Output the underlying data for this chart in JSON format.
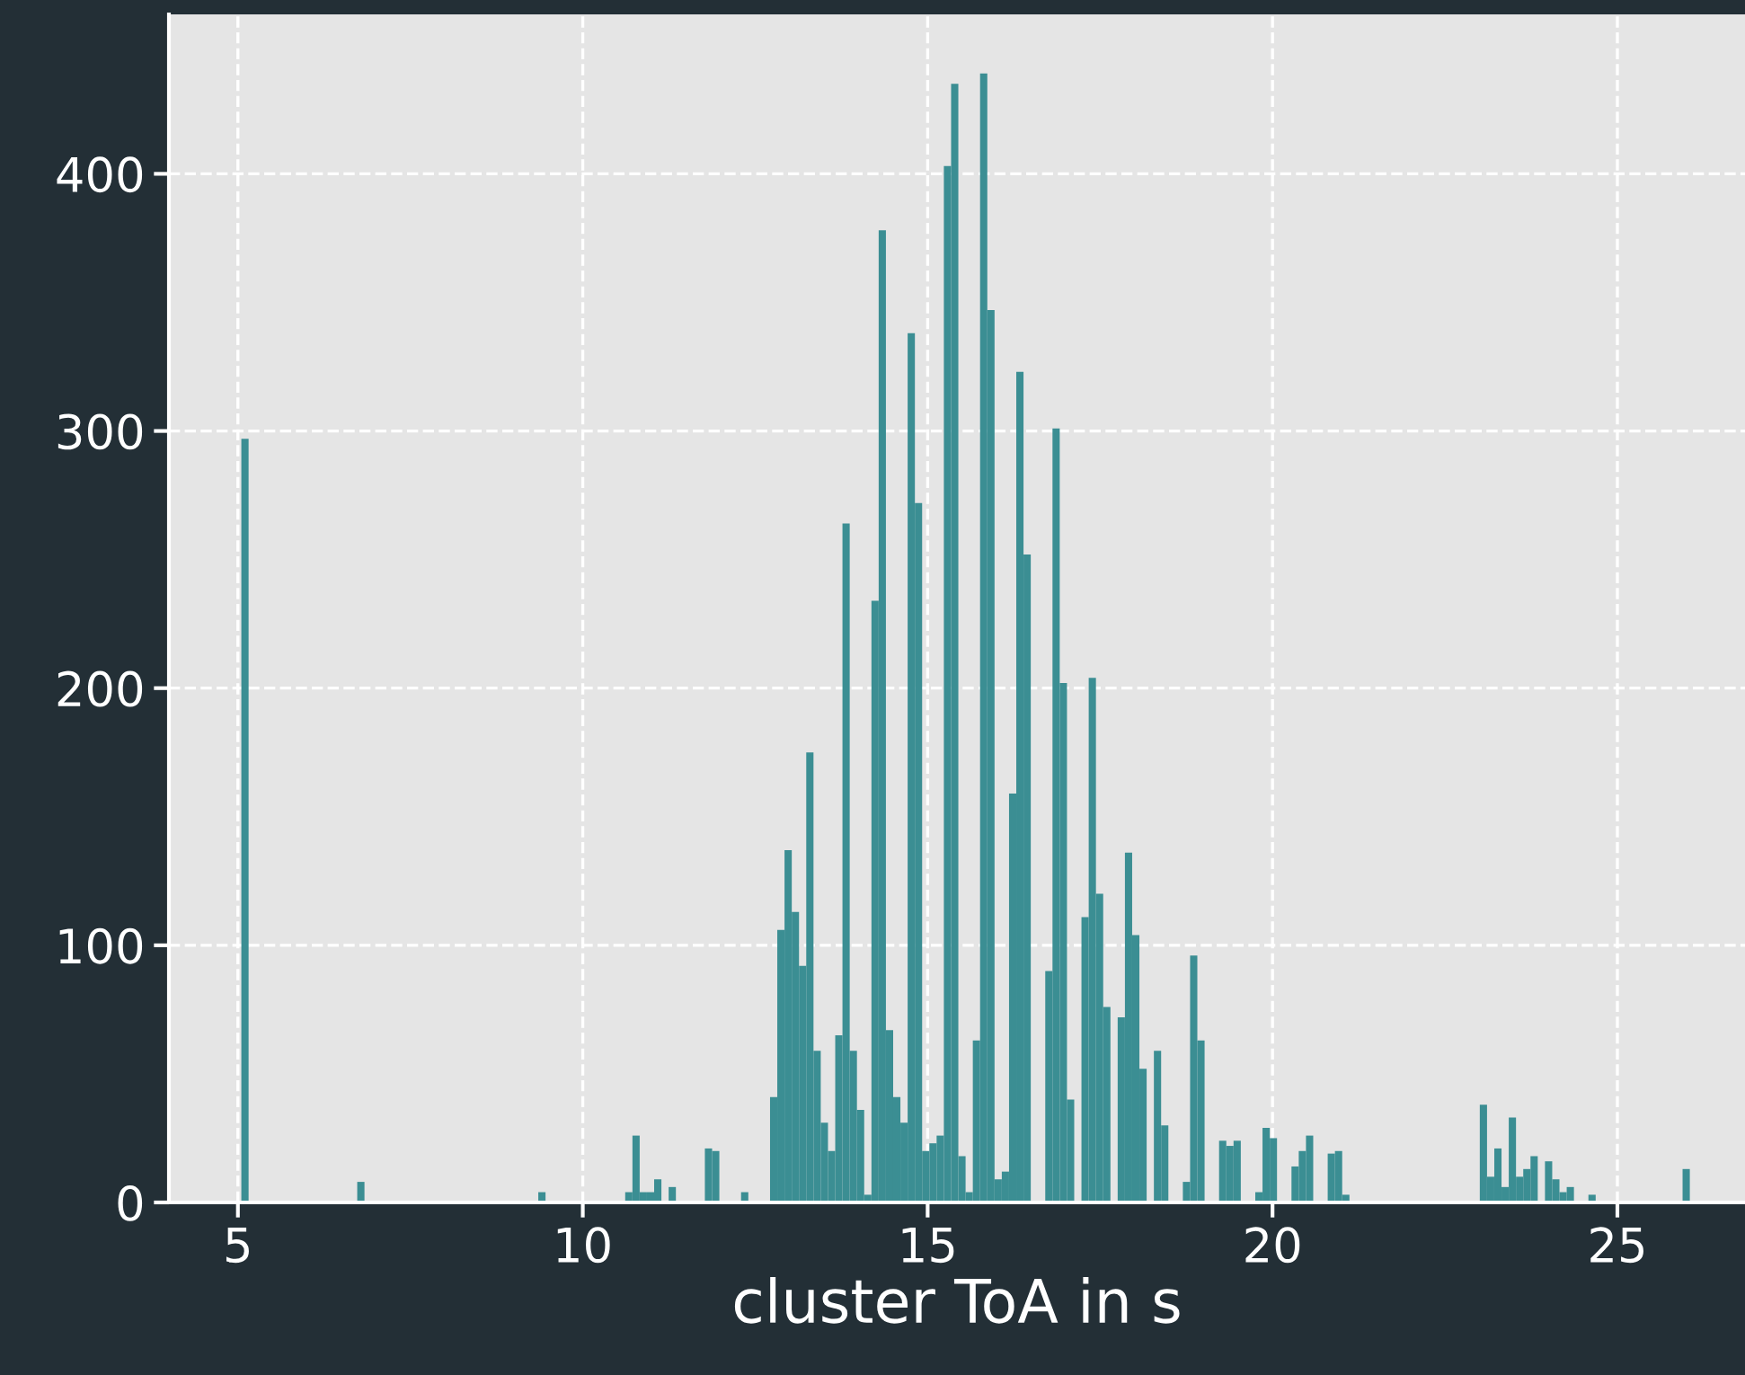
{
  "chart_data": {
    "type": "histogram",
    "xlabel": "cluster ToA in s",
    "color": "#3b8e93",
    "bins": [
      5.05,
      5.155,
      6.73,
      6.835,
      9.355,
      9.46,
      10.615,
      10.72,
      10.825,
      10.93,
      11.035,
      11.14,
      11.245,
      11.35,
      11.77,
      11.875,
      11.98,
      12.295,
      12.4,
      12.715,
      12.82,
      12.925,
      13.03,
      13.135,
      13.24,
      13.345,
      13.45,
      13.555,
      13.66,
      13.765,
      13.87,
      13.975,
      14.08,
      14.185,
      14.29,
      14.395,
      14.5,
      14.605,
      14.71,
      14.815,
      14.92,
      15.025,
      15.13,
      15.235,
      15.34,
      15.445,
      15.55,
      15.655,
      15.76,
      15.865,
      15.97,
      16.075,
      16.18,
      16.285,
      16.39,
      16.495,
      16.705,
      16.81,
      16.915,
      17.02,
      17.125,
      17.23,
      17.335,
      17.44,
      17.545,
      17.65,
      17.755,
      17.86,
      17.965,
      18.07,
      18.175,
      18.28,
      18.385,
      18.49,
      18.7,
      18.805,
      18.91,
      19.015,
      19.225,
      19.33,
      19.435,
      19.54,
      19.75,
      19.855,
      19.96,
      20.065,
      20.275,
      20.38,
      20.485,
      20.59,
      20.8,
      20.905,
      21.01,
      21.115,
      23.005,
      23.11,
      23.215,
      23.32,
      23.425,
      23.53,
      23.635,
      23.74,
      23.845,
      23.95,
      24.055,
      24.16,
      24.265,
      24.37,
      24.58,
      24.685,
      25.945,
      26.05
    ],
    "values": [
      297,
      0,
      8,
      0,
      4,
      0,
      4,
      26,
      4,
      4,
      9,
      0,
      6,
      0,
      21,
      20,
      0,
      4,
      0,
      41,
      106,
      137,
      113,
      92,
      175,
      59,
      31,
      20,
      65,
      264,
      59,
      36,
      3,
      234,
      378,
      67,
      41,
      31,
      338,
      272,
      20,
      23,
      26,
      403,
      435,
      18,
      4,
      63,
      439,
      347,
      9,
      12,
      159,
      323,
      252,
      0,
      90,
      301,
      202,
      40,
      0,
      111,
      204,
      120,
      76,
      0,
      72,
      136,
      104,
      52,
      0,
      59,
      30,
      0,
      8,
      96,
      63,
      0,
      24,
      22,
      24,
      0,
      4,
      29,
      25,
      0,
      14,
      20,
      26,
      0,
      19,
      20,
      3,
      0,
      38,
      10,
      21,
      6,
      33,
      10,
      13,
      18,
      0,
      16,
      9,
      4,
      6,
      0,
      3,
      0,
      13
    ],
    "xlim": [
      4.0,
      26.85
    ],
    "ylim": [
      0,
      462
    ],
    "xticks": [
      5,
      10,
      15,
      20,
      25
    ],
    "yticks": [
      0,
      100,
      200,
      300,
      400
    ],
    "grid": true
  }
}
